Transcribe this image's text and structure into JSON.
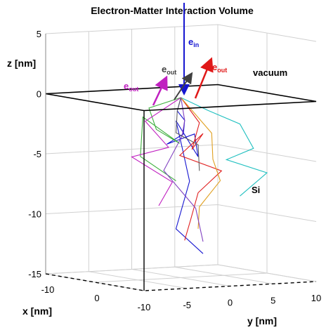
{
  "chart_data": {
    "type": "line3d",
    "title": "Electron-Matter Interaction Volume",
    "xlabel": "x [nm]",
    "ylabel": "y [nm]",
    "zlabel": "z [nm]",
    "xlim": [
      -10,
      10
    ],
    "ylim": [
      -10,
      10
    ],
    "zlim": [
      -15,
      5
    ],
    "xticks": [
      -10,
      0
    ],
    "yticks": [
      -10,
      -5,
      0,
      5,
      10
    ],
    "zticks": [
      -15,
      -10,
      -5,
      0,
      5
    ],
    "grid": true,
    "annotations": [
      {
        "text": "e",
        "sub": "in",
        "color": "#1515d0"
      },
      {
        "text": "e",
        "sub": "out",
        "color": "#c020c0"
      },
      {
        "text": "e",
        "sub": "out",
        "color": "#404040"
      },
      {
        "text": "e",
        "sub": "out",
        "color": "#e01818"
      },
      {
        "text": "vacuum",
        "color": "#000000"
      },
      {
        "text": "Si",
        "color": "#000000"
      }
    ],
    "series": [
      {
        "color": "#1515d0",
        "x": [
          0,
          1,
          -1,
          0.5,
          -2,
          1,
          0,
          -1,
          2,
          0,
          -1,
          1
        ],
        "y": [
          0,
          -1,
          1,
          0,
          -0.5,
          1,
          2,
          0,
          -1,
          1,
          0,
          2
        ],
        "z": [
          0,
          -1,
          -2,
          -3,
          -4,
          -3,
          -5,
          -2,
          -4,
          -7,
          -11,
          -13
        ]
      },
      {
        "color": "#e02020",
        "x": [
          0,
          2,
          4,
          1,
          -2,
          3,
          0,
          2,
          -1
        ],
        "y": [
          0,
          1,
          -1,
          2,
          1,
          3,
          2,
          0,
          1
        ],
        "z": [
          0,
          -2,
          -4,
          -3,
          -5,
          -6,
          -8,
          -10,
          -12
        ]
      },
      {
        "color": "#40b040",
        "x": [
          0,
          -3,
          -5,
          -2,
          -6,
          -3,
          -1
        ],
        "y": [
          0,
          -2,
          0,
          1,
          -1,
          -3,
          0
        ],
        "z": [
          0,
          -1,
          -3,
          -4,
          -2,
          -5,
          -7
        ]
      },
      {
        "color": "#20c0c0",
        "x": [
          0,
          2,
          5,
          6,
          4,
          7,
          5
        ],
        "y": [
          0,
          2,
          4,
          5,
          3,
          6,
          4
        ],
        "z": [
          0,
          -1,
          -2,
          -4,
          -5,
          -6,
          -8
        ]
      },
      {
        "color": "#c020c0",
        "x": [
          0,
          -2,
          1,
          -3,
          0,
          -1
        ],
        "y": [
          0,
          -3,
          -2,
          -4,
          -1,
          -2
        ],
        "z": [
          0,
          -2,
          -4,
          -5,
          -7,
          -9
        ]
      },
      {
        "color": "#e0a020",
        "x": [
          0,
          1,
          3,
          1,
          2,
          0
        ],
        "y": [
          0,
          3,
          2,
          4,
          1,
          2
        ],
        "z": [
          0,
          -3,
          -5,
          -7,
          -9,
          -11
        ]
      },
      {
        "color": "#8040c0",
        "x": [
          0,
          -1,
          2,
          0,
          3,
          1
        ],
        "y": [
          0,
          1,
          -1,
          -2,
          0,
          2
        ],
        "z": [
          0,
          -2,
          -3,
          -6,
          -9,
          -12
        ]
      },
      {
        "color": "#606060",
        "x": [
          0,
          1,
          -1,
          0,
          2
        ],
        "y": [
          0,
          -1,
          0,
          2,
          1
        ],
        "z": [
          0,
          -1,
          -3,
          -4,
          -6
        ]
      }
    ]
  }
}
